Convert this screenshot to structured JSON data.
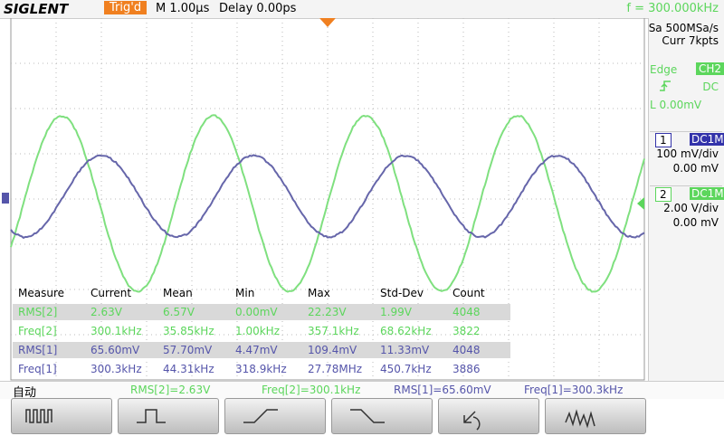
{
  "header": {
    "brand": "SIGLENT",
    "status": "Trig'd",
    "timebase": "M 1.00μs",
    "delay": "Delay 0.00ps",
    "frequency": "f = 300.000kHz"
  },
  "acquisition": {
    "sample_rate": "Sa 500MSa/s",
    "memory": "Curr 7kpts"
  },
  "trigger": {
    "type": "Edge",
    "source": "CH2",
    "coupling": "DC",
    "level": "L  0.00mV"
  },
  "channels": [
    {
      "number": "1",
      "coupling": "DC1M",
      "scale": "100 mV/div",
      "offset": "0.00 mV"
    },
    {
      "number": "2",
      "coupling": "DC1M",
      "scale": "2.00 V/div",
      "offset": "0.00 mV"
    }
  ],
  "measure": {
    "columns": [
      "Measure",
      "Current",
      "Mean",
      "Min",
      "Max",
      "Std-Dev",
      "Count"
    ],
    "rows": [
      [
        "RMS[2]",
        "2.63V",
        "6.57V",
        "0.00mV",
        "22.23V",
        "1.99V",
        "4048"
      ],
      [
        "Freq[2]",
        "300.1kHz",
        "35.85kHz",
        "1.00kHz",
        "357.1kHz",
        "68.62kHz",
        "3822"
      ],
      [
        "RMS[1]",
        "65.60mV",
        "57.70mV",
        "4.47mV",
        "109.4mV",
        "11.33mV",
        "4048"
      ],
      [
        "Freq[1]",
        "300.3kHz",
        "44.31kHz",
        "318.9kHz",
        "27.78MHz",
        "450.7kHz",
        "3886"
      ]
    ]
  },
  "status_bar": {
    "mode": "自动",
    "readouts": [
      "RMS[2]=2.63V",
      "Freq[2]=300.1kHz",
      "RMS[1]=65.60mV",
      "Freq[1]=300.3kHz"
    ]
  }
}
